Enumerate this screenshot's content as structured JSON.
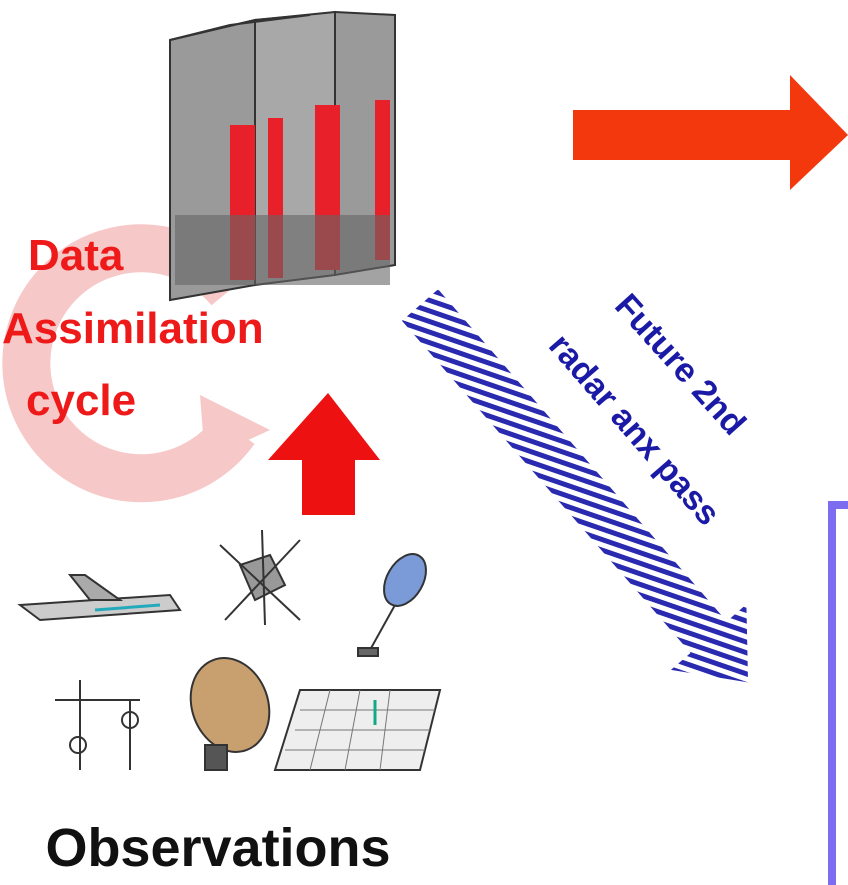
{
  "cycle_label": {
    "lines": [
      "Data",
      "Assimilation",
      "cycle"
    ]
  },
  "future_label": {
    "lines": [
      "Future 2nd",
      "radar anx pass"
    ]
  },
  "observations_label": "Observations"
}
